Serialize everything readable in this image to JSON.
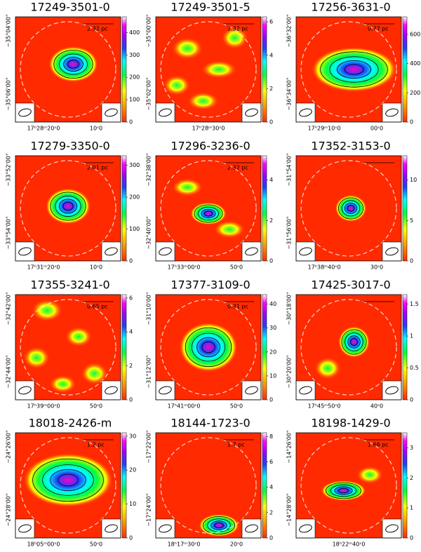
{
  "panels": [
    {
      "title": "17249-3501-0",
      "scale": "2.32 pc",
      "colorbar_range": [
        0,
        470
      ],
      "colorbar_ticks": [
        0,
        100,
        200,
        300,
        400
      ],
      "yticks": [
        "−35°04'00\"",
        "−35°06'00\""
      ],
      "xticks": [
        "17ʰ28ᵐ20ˢ0",
        "10ˢ0"
      ]
    },
    {
      "title": "17249-3501-5",
      "scale": "2.32 pc",
      "colorbar_range": [
        0,
        6.3
      ],
      "colorbar_ticks": [
        0,
        2,
        4,
        6
      ],
      "yticks": [
        "−35°00'00\"",
        "−35°02'00\""
      ],
      "xticks": [
        "17ʰ28ᵐ30ˢ0"
      ]
    },
    {
      "title": "17256-3631-0",
      "scale": "0.77 pc",
      "colorbar_range": [
        0,
        720
      ],
      "colorbar_ticks": [
        0,
        200,
        400,
        600
      ],
      "yticks": [
        "−36°32'00\"",
        "−36°34'00\""
      ],
      "xticks": [
        "17ʰ29ᵐ10ˢ0",
        "00ˢ0"
      ]
    },
    {
      "title": "17279-3350-0",
      "scale": "2.01 pc",
      "colorbar_range": [
        0,
        330
      ],
      "colorbar_ticks": [
        0,
        100,
        200,
        300
      ],
      "yticks": [
        "−33°52'00\"",
        "−33°54'00\""
      ],
      "xticks": [
        "17ʰ31ᵐ20ˢ0",
        "10ˢ0"
      ]
    },
    {
      "title": "17296-3236-0",
      "scale": "2.32 pc",
      "colorbar_range": [
        0,
        5.2
      ],
      "colorbar_ticks": [
        0,
        2,
        4
      ],
      "yticks": [
        "−32°38'00\"",
        "−32°40'00\""
      ],
      "xticks": [
        "17ʰ33ᵐ00ˢ0",
        "50ˢ0"
      ]
    },
    {
      "title": "17352-3153-0",
      "colorbar_range": [
        0,
        13
      ],
      "colorbar_ticks": [
        0,
        5,
        10
      ],
      "yticks": [
        "−31°54'00\"",
        "−31°56'00\""
      ],
      "xticks": [
        "17ʰ38ᵐ40ˢ0",
        "30ˢ0"
      ]
    },
    {
      "title": "17355-3241-0",
      "scale": "0.65 pc",
      "colorbar_range": [
        0,
        6.2
      ],
      "colorbar_ticks": [
        0,
        2,
        4,
        6
      ],
      "yticks": [
        "−32°42'00\"",
        "−32°44'00\""
      ],
      "xticks": [
        "17ʰ39ᵐ00ˢ0",
        "50ˢ0"
      ]
    },
    {
      "title": "17377-3109-0",
      "scale": "0.31 pc",
      "colorbar_range": [
        0,
        44
      ],
      "colorbar_ticks": [
        0,
        10,
        20,
        30,
        40
      ],
      "yticks": [
        "−31°10'00\"",
        "−31°12'00\""
      ],
      "xticks": [
        "17ʰ41ᵐ00ˢ0",
        "50ˢ0"
      ]
    },
    {
      "title": "17425-3017-0",
      "colorbar_range": [
        0,
        1.65
      ],
      "colorbar_ticks": [
        0,
        0.5,
        1,
        1.5
      ],
      "yticks": [
        "−30°18'00\"",
        "−30°20'00\""
      ],
      "xticks": [
        "17ʰ45ᵐ50ˢ0",
        "40ˢ0"
      ]
    },
    {
      "title": "18018-2426-m",
      "scale": "1.2 pc",
      "colorbar_range": [
        0,
        31
      ],
      "colorbar_ticks": [
        0,
        10,
        20,
        30
      ],
      "yticks": [
        "−24°26'00\"",
        "−24°28'00\""
      ],
      "xticks": [
        "18ʰ05ᵐ00ˢ0",
        "50ˢ0"
      ]
    },
    {
      "title": "18144-1723-0",
      "scale": "1.7 pc",
      "colorbar_range": [
        0,
        8.3
      ],
      "colorbar_ticks": [
        0,
        2,
        4,
        6,
        8
      ],
      "yticks": [
        "−17°22'00\"",
        "−17°24'00\""
      ],
      "xticks": [
        "18ʰ17ᵐ30ˢ0",
        "20ˢ0"
      ]
    },
    {
      "title": "18198-1429-0",
      "scale": "1.66 pc",
      "colorbar_range": [
        0,
        3.5
      ],
      "colorbar_ticks": [
        0,
        1,
        2,
        3
      ],
      "yticks": [
        "−14°26'00\"",
        "−14°28'00\""
      ],
      "xticks": [
        "18ʰ22ᵐ40ˢ0"
      ]
    }
  ]
}
